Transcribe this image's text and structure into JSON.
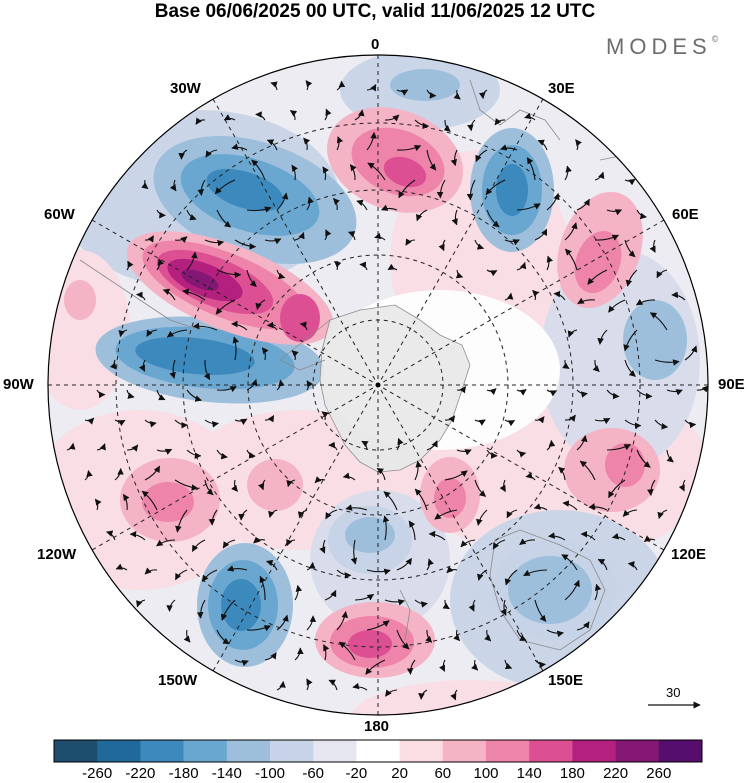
{
  "title": "Base 06/06/2025 00 UTC, valid 11/06/2025 12 UTC",
  "brand": {
    "text": "MODES",
    "mark": "©"
  },
  "longitude_labels": {
    "top": "0",
    "top_right": "30E",
    "upper_right": "60E",
    "right": "90E",
    "lower_right": "120E",
    "bottom_right": "150E",
    "bottom": "180",
    "bottom_left": "150W",
    "lower_left": "120W",
    "left": "90W",
    "upper_left": "60W",
    "top_left": "30W"
  },
  "reference_vector": {
    "value": "30"
  },
  "colorbar": {
    "labels": [
      "-260",
      "-220",
      "-180",
      "-140",
      "-100",
      "-60",
      "-20",
      "20",
      "60",
      "100",
      "140",
      "180",
      "220",
      "260"
    ],
    "colors": [
      "#1e4e6e",
      "#1f6a9a",
      "#3b89bd",
      "#6aa7d0",
      "#9ebfdc",
      "#c7d3e6",
      "#e6e6f0",
      "#ffffff",
      "#fbdde4",
      "#f5b3c6",
      "#ee84a9",
      "#dd4f93",
      "#b3207e",
      "#841874",
      "#560e6e"
    ]
  },
  "colors": {
    "land": "#e9e9e9",
    "coast": "#8a8a8a",
    "grid": "#222222",
    "arrow": "#111111"
  },
  "icons": {
    "pole_marker": "dot-icon",
    "reference_arrow": "arrow-right-icon"
  }
}
